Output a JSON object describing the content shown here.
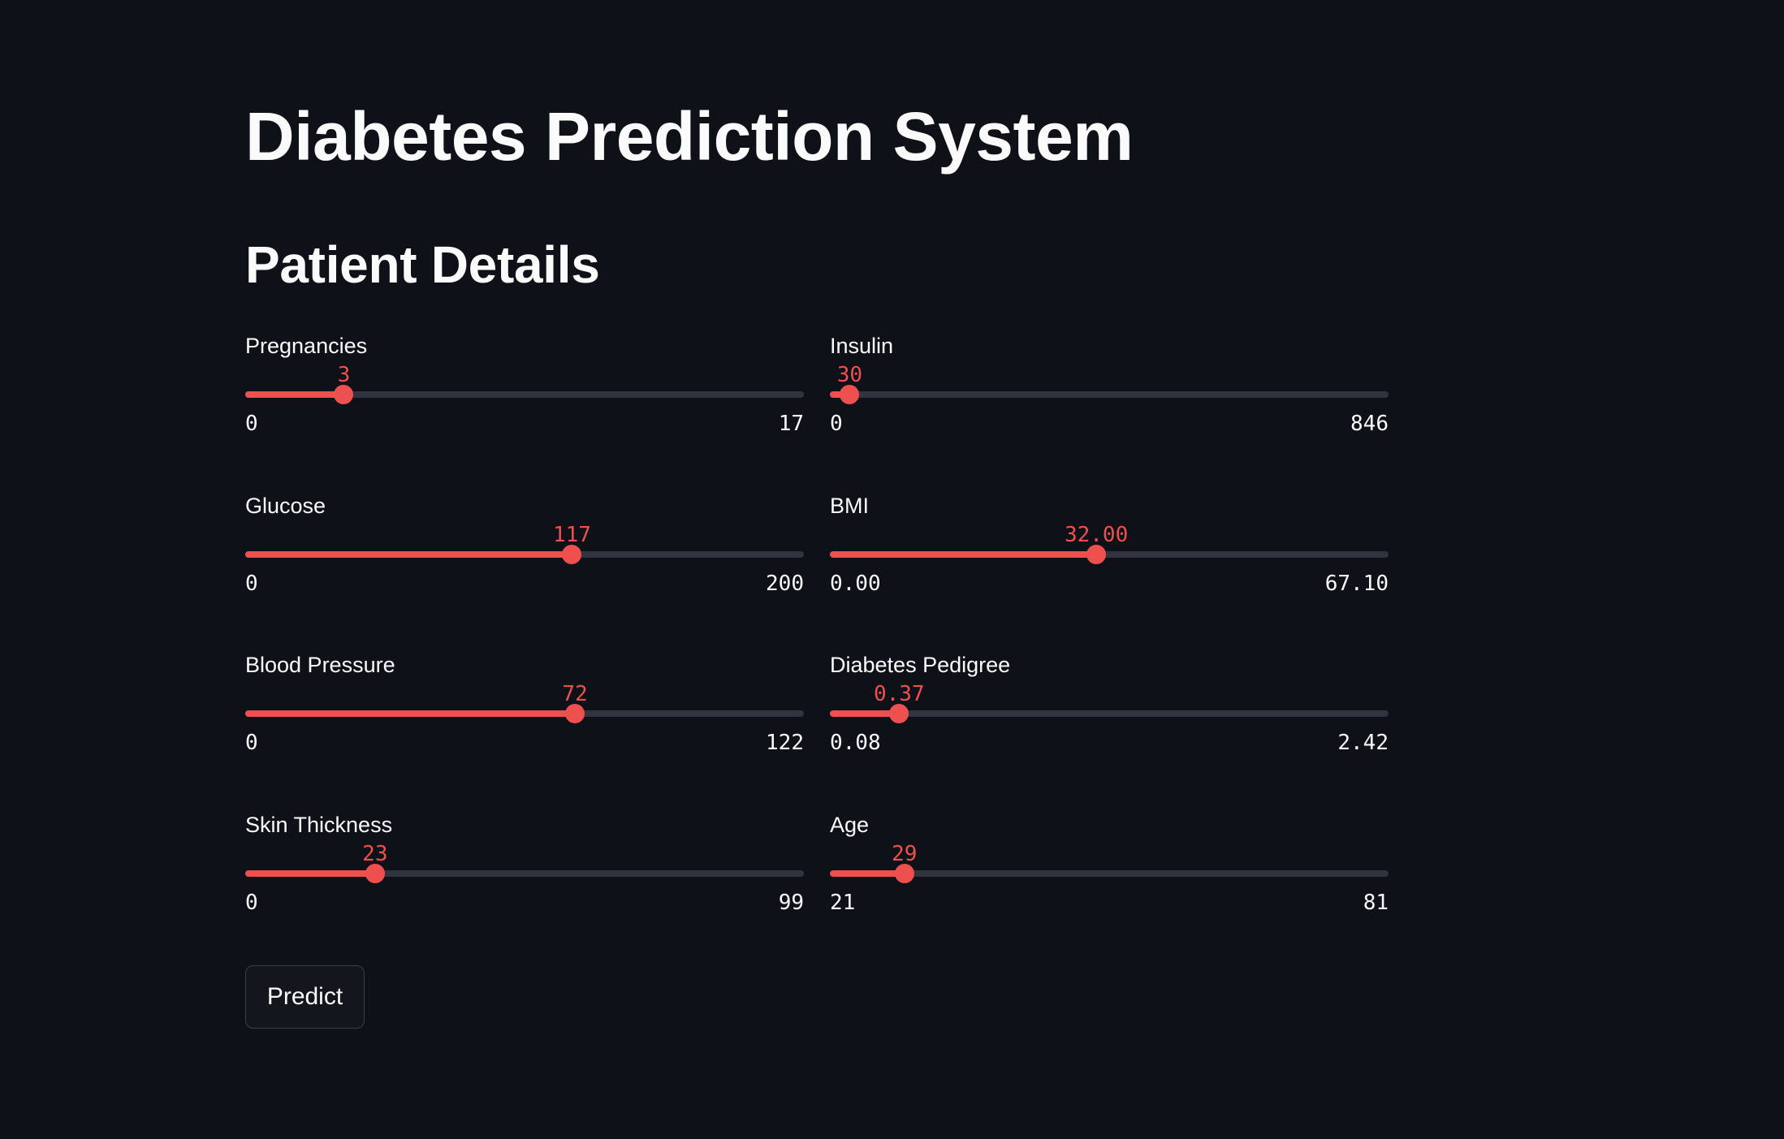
{
  "page": {
    "title": "Diabetes Prediction System",
    "subtitle": "Patient Details"
  },
  "accent_color": "#ee5050",
  "background_color": "#0e1117",
  "sliders": {
    "pregnancies": {
      "label": "Pregnancies",
      "value": "3",
      "min": "0",
      "max": "17",
      "value_num": 3,
      "min_num": 0,
      "max_num": 17
    },
    "insulin": {
      "label": "Insulin",
      "value": "30",
      "min": "0",
      "max": "846",
      "value_num": 30,
      "min_num": 0,
      "max_num": 846
    },
    "glucose": {
      "label": "Glucose",
      "value": "117",
      "min": "0",
      "max": "200",
      "value_num": 117,
      "min_num": 0,
      "max_num": 200
    },
    "bmi": {
      "label": "BMI",
      "value": "32.00",
      "min": "0.00",
      "max": "67.10",
      "value_num": 32.0,
      "min_num": 0.0,
      "max_num": 67.1
    },
    "blood_pressure": {
      "label": "Blood Pressure",
      "value": "72",
      "min": "0",
      "max": "122",
      "value_num": 72,
      "min_num": 0,
      "max_num": 122
    },
    "diabetes_pedigree": {
      "label": "Diabetes Pedigree",
      "value": "0.37",
      "min": "0.08",
      "max": "2.42",
      "value_num": 0.37,
      "min_num": 0.08,
      "max_num": 2.42
    },
    "skin_thickness": {
      "label": "Skin Thickness",
      "value": "23",
      "min": "0",
      "max": "99",
      "value_num": 23,
      "min_num": 0,
      "max_num": 99
    },
    "age": {
      "label": "Age",
      "value": "29",
      "min": "21",
      "max": "81",
      "value_num": 29,
      "min_num": 21,
      "max_num": 81
    }
  },
  "predict_button": {
    "label": "Predict"
  }
}
